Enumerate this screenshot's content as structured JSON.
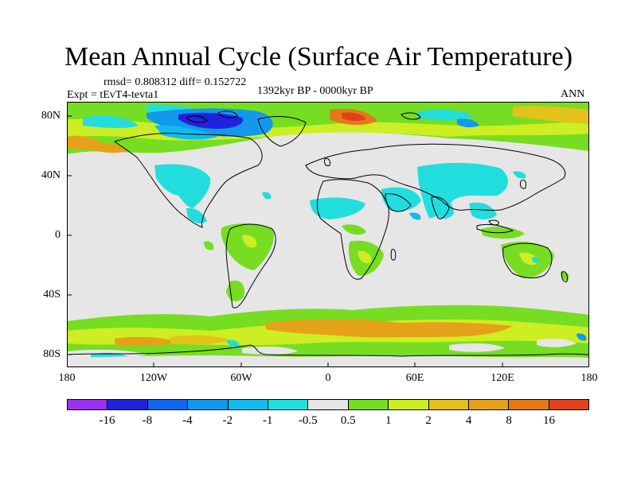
{
  "title": "Mean Annual Cycle (Surface Air Temperature)",
  "stats_line": "rmsd= 0.808312 diff= 0.152722",
  "experiment_label": "Expt = tEvT4-tevta1",
  "period_label": "1392kyr BP - 0000kyr BP",
  "season_label": "ANN",
  "y_ticks": [
    "80N",
    "40N",
    "0",
    "40S",
    "80S"
  ],
  "x_ticks": [
    "180",
    "120W",
    "60W",
    "0",
    "60E",
    "120E",
    "180"
  ],
  "legend": {
    "colors": [
      "#9933ee",
      "#2222dd",
      "#1166ee",
      "#1199ee",
      "#11bbee",
      "#22dddd",
      "#e6e6e6",
      "#77dd22",
      "#ccee22",
      "#e5c21b",
      "#e6a11a",
      "#e27a1a",
      "#e0421b"
    ],
    "labels": [
      "-16",
      "-8",
      "-4",
      "-2",
      "-1",
      "-0.5",
      "0.5",
      "1",
      "2",
      "4",
      "8",
      "16"
    ]
  },
  "colors": {
    "neutral": "#e6e6e6",
    "green": "#77dd22",
    "yellow_green": "#ccee22",
    "yellow": "#e5c21b",
    "orange": "#e6a11a",
    "dark_orange": "#e27a1a",
    "red_orange": "#e0421b",
    "cyan": "#22dddd",
    "light_blue": "#11bbee",
    "blue": "#1199ee",
    "dark_blue": "#2222dd"
  }
}
